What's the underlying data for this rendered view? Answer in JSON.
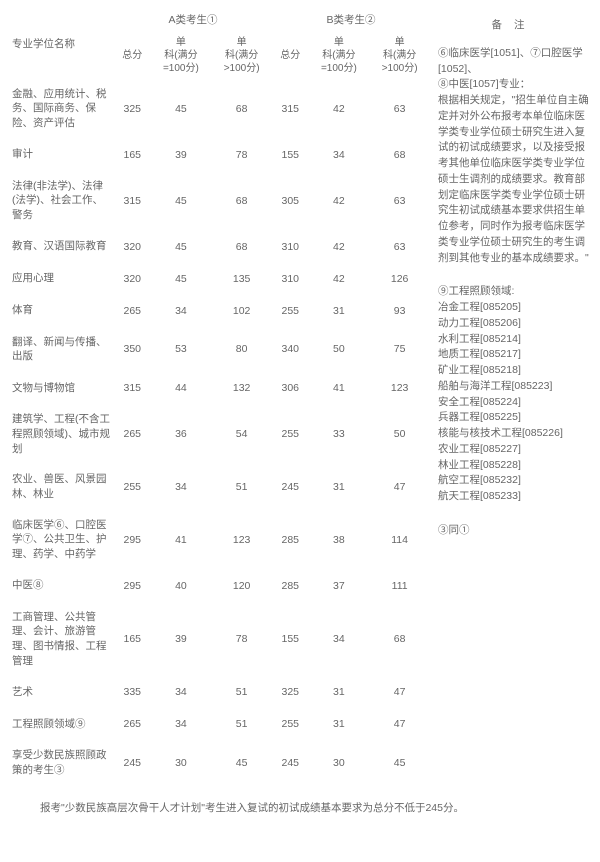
{
  "headers": {
    "col_major": "专业学位名称",
    "group_a": "A类考生①",
    "group_b": "B类考生②",
    "beizhu": "备注",
    "zongfen": "总分",
    "danke1_l1": "单",
    "danke1_l2": "科(满分",
    "danke1_l3": "=100分)",
    "danke2_l1": "单",
    "danke2_l2": "科(满分",
    "danke2_l3": ">100分)"
  },
  "rows": [
    {
      "label": "金融、应用统计、税务、国际商务、保险、资产评估",
      "a1": "325",
      "a2": "45",
      "a3": "68",
      "b1": "315",
      "b2": "42",
      "b3": "63"
    },
    {
      "label": "审计",
      "a1": "165",
      "a2": "39",
      "a3": "78",
      "b1": "155",
      "b2": "34",
      "b3": "68"
    },
    {
      "label": "法律(非法学)、法律(法学)、社会工作、警务",
      "a1": "315",
      "a2": "45",
      "a3": "68",
      "b1": "305",
      "b2": "42",
      "b3": "63"
    },
    {
      "label": "教育、汉语国际教育",
      "a1": "320",
      "a2": "45",
      "a3": "68",
      "b1": "310",
      "b2": "42",
      "b3": "63"
    },
    {
      "label": "应用心理",
      "a1": "320",
      "a2": "45",
      "a3": "135",
      "b1": "310",
      "b2": "42",
      "b3": "126"
    },
    {
      "label": "体育",
      "a1": "265",
      "a2": "34",
      "a3": "102",
      "b1": "255",
      "b2": "31",
      "b3": "93"
    },
    {
      "label": "翻译、新闻与传播、出版",
      "a1": "350",
      "a2": "53",
      "a3": "80",
      "b1": "340",
      "b2": "50",
      "b3": "75"
    },
    {
      "label": "文物与博物馆",
      "a1": "315",
      "a2": "44",
      "a3": "132",
      "b1": "306",
      "b2": "41",
      "b3": "123"
    },
    {
      "label": "建筑学、工程(不含工程照顾领域)、城市规划",
      "a1": "265",
      "a2": "36",
      "a3": "54",
      "b1": "255",
      "b2": "33",
      "b3": "50"
    },
    {
      "label": "农业、兽医、风景园林、林业",
      "a1": "255",
      "a2": "34",
      "a3": "51",
      "b1": "245",
      "b2": "31",
      "b3": "47"
    },
    {
      "label": "临床医学⑥、口腔医学⑦、公共卫生、护理、药学、中药学",
      "a1": "295",
      "a2": "41",
      "a3": "123",
      "b1": "285",
      "b2": "38",
      "b3": "114"
    },
    {
      "label": "中医⑧",
      "a1": "295",
      "a2": "40",
      "a3": "120",
      "b1": "285",
      "b2": "37",
      "b3": "111"
    },
    {
      "label": "工商管理、公共管理、会计、旅游管理、图书情报、工程管理",
      "a1": "165",
      "a2": "39",
      "a3": "78",
      "b1": "155",
      "b2": "34",
      "b3": "68"
    },
    {
      "label": "艺术",
      "a1": "335",
      "a2": "34",
      "a3": "51",
      "b1": "325",
      "b2": "31",
      "b3": "47"
    },
    {
      "label": "工程照顾领域⑨",
      "a1": "265",
      "a2": "34",
      "a3": "51",
      "b1": "255",
      "b2": "31",
      "b3": "47"
    },
    {
      "label": "享受少数民族照顾政策的考生③",
      "a1": "245",
      "a2": "30",
      "a3": "45",
      "b1": "245",
      "b2": "30",
      "b3": "45"
    }
  ],
  "notes": {
    "n1": "⑥临床医学[1051]、⑦口腔医学[1052]、",
    "n1b": "⑧中医[1057]专业：",
    "n1c": "根据相关规定，\"招生单位自主确定并对外公布报考本单位临床医学类专业学位硕士研究生进入复试的初试成绩要求，以及接受报考其他单位临床医学类专业学位硕士生调剂的成绩要求。教育部划定临床医学类专业学位硕士研究生初试成绩基本要求供招生单位参考，同时作为报考临床医学类专业学位硕士研究生的考生调剂到其他专业的基本成绩要求。\"",
    "n2title": "⑨工程照顾领域:",
    "n2lines": [
      "冶金工程[085205]",
      "动力工程[085206]",
      "水利工程[085214]",
      "地质工程[085217]",
      "矿业工程[085218]",
      "船舶与海洋工程[085223]",
      "安全工程[085224]",
      "兵器工程[085225]",
      "核能与核技术工程[085226]",
      "农业工程[085227]",
      "林业工程[085228]",
      "航空工程[085232]",
      "航天工程[085233]"
    ],
    "n3": "③同①"
  },
  "footnote": "报考\"少数民族高层次骨干人才计划\"考生进入复试的初试成绩基本要求为总分不低于245分。"
}
